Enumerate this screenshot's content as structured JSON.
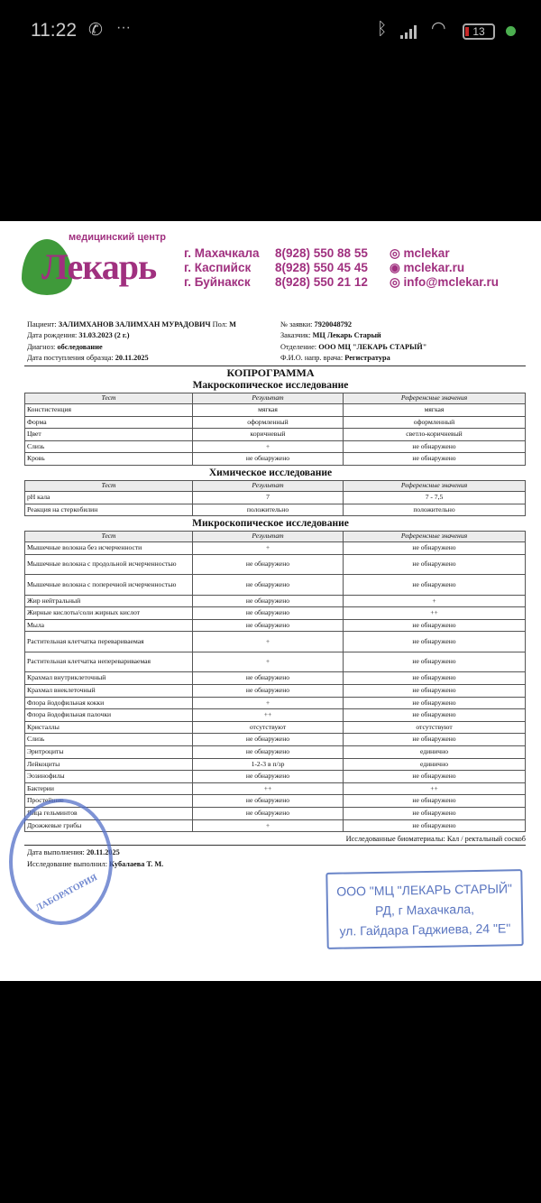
{
  "status_bar": {
    "time": "11:22",
    "battery": "13",
    "icons": [
      "whatsapp-icon",
      "more-icon",
      "bluetooth-icon",
      "signal-icon",
      "wifi-icon",
      "battery-icon",
      "camera-dot"
    ]
  },
  "header": {
    "logo_subtitle": "медицинский центр",
    "logo_name": "Лекарь",
    "cities": [
      "г. Махачкала",
      "г. Каспийск",
      "г. Буйнакск"
    ],
    "phones": [
      "8(928) 550 88 55",
      "8(928) 550 45 45",
      "8(928) 550 21 12"
    ],
    "contacts": [
      "mclekar",
      "mclekar.ru",
      "info@mclekar.ru"
    ],
    "brand_color": "#a0307f"
  },
  "patient": {
    "patient_label": "Пациент:",
    "patient": "ЗАЛИМХАНОВ ЗАЛИМХАН МУРАДОВИЧ",
    "sex_label": "Пол:",
    "sex": "М",
    "dob_label": "Дата рождения:",
    "dob": "31.03.2023 (2 г.)",
    "diag_label": "Диагноз:",
    "diag": "обследование",
    "received_label": "Дата поступления образца:",
    "received": "20.11.2025",
    "order_label": "№ заявки:",
    "order": "7920048792",
    "customer_label": "Заказчик:",
    "customer": "МЦ Лекарь Старый",
    "dept_label": "Отделение:",
    "dept": "ООО МЦ \"ЛЕКАРЬ СТАРЫЙ\"",
    "doctor_label": "Ф.И.О. напр. врача:",
    "doctor": "Регистратура"
  },
  "title": "КОПРОГРАММА",
  "columns": [
    "Тест",
    "Результат",
    "Референсные значения"
  ],
  "sections": [
    {
      "heading": "Макроскопическое исследование",
      "rows": [
        [
          "Констистенция",
          "мягкая",
          "мягкая"
        ],
        [
          "Форма",
          "оформленный",
          "оформленный"
        ],
        [
          "Цвет",
          "коричневый",
          "светло-коричневый"
        ],
        [
          "Слизь",
          "+",
          "не обнаружено"
        ],
        [
          "Кровь",
          "не обнаружено",
          "не обнаружено"
        ]
      ]
    },
    {
      "heading": "Химическое исследование",
      "rows": [
        [
          "pH кала",
          "7",
          "7 - 7,5"
        ],
        [
          "Реакция на стеркобилин",
          "положительно",
          "положительно"
        ]
      ]
    },
    {
      "heading": "Микроскопическое исследование",
      "rows": [
        [
          "Мышечные волокна без исчерченности",
          "+",
          "не обнаружено"
        ],
        [
          "Мышечные волокна с продольной исчерченностью",
          "не обнаружено",
          "не обнаружено"
        ],
        [
          "Мышечные волокна с поперечной исчерченностью",
          "не обнаружено",
          "не обнаружено"
        ],
        [
          "Жир нейтральный",
          "не обнаружено",
          "+"
        ],
        [
          "Жирные кислоты/соли жирных кислот",
          "не обнаружено",
          "++"
        ],
        [
          "Мыла",
          "не обнаружено",
          "не обнаружено"
        ],
        [
          "Растительная клетчатка перевариваемая",
          "+",
          "не обнаружено"
        ],
        [
          "Растительная клетчатка неперевариваемая",
          "+",
          "не обнаружено"
        ],
        [
          "Крахмал внутриклеточный",
          "не обнаружено",
          "не обнаружено"
        ],
        [
          "Крахмал внеклеточный",
          "не обнаружено",
          "не обнаружено"
        ],
        [
          "Флора йодофильная кокки",
          "+",
          "не обнаружено"
        ],
        [
          "Флора йодофильная палочки",
          "++",
          "не обнаружено"
        ],
        [
          "Кристаллы",
          "отсутствуют",
          "отсутствуют"
        ],
        [
          "Слизь",
          "не обнаружено",
          "не обнаружено"
        ],
        [
          "Эритроциты",
          "не обнаружено",
          "единично"
        ],
        [
          "Лейкоциты",
          "1-2-3 в п/зр",
          "единично"
        ],
        [
          "Эозинофилы",
          "не обнаружено",
          "не обнаружено"
        ],
        [
          "Бактерии",
          "++",
          "++"
        ],
        [
          "Простейшие",
          "не обнаружено",
          "не обнаружено"
        ],
        [
          "Яйца гельминтов",
          "не обнаружено",
          "не обнаружено"
        ],
        [
          "Дрожжевые грибы",
          "+",
          "не обнаружено"
        ]
      ]
    }
  ],
  "footer": {
    "biomaterial": "Исследованные биоматериалы: Кал / ректальный соскоб",
    "done_label": "Дата выполнения:",
    "done": "20.11.2025",
    "by_label": "Исследование выполнил:",
    "by": "Кубалаева Т. М."
  },
  "stamps": {
    "round": "ЛАБОРАТОРИЯ",
    "rect": [
      "ООО \"МЦ \"ЛЕКАРЬ СТАРЫЙ\"",
      "РД, г Махачкала,",
      "ул. Гайдара Гаджиева, 24 \"Е\""
    ]
  }
}
